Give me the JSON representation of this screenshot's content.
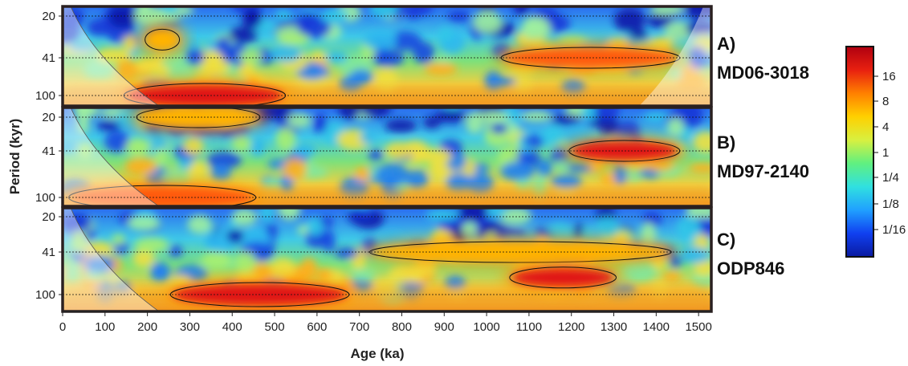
{
  "chart_data": {
    "type": "heatmap",
    "subtype": "wavelet-power-spectrum",
    "xlabel": "Age (ka)",
    "ylabel": "Period (kyr)",
    "xlim": [
      0,
      1530
    ],
    "x_ticks": [
      0,
      100,
      200,
      300,
      400,
      500,
      600,
      700,
      800,
      900,
      1000,
      1100,
      1200,
      1300,
      1400,
      1500
    ],
    "y_scale": "log",
    "y_ticks": [
      20,
      41,
      100
    ],
    "colorbar": {
      "scale": "log2",
      "tick_labels": [
        "16",
        "8",
        "4",
        "1",
        "1/4",
        "1/8",
        "1/16"
      ],
      "colors": [
        "#0a1aa0",
        "#1040f0",
        "#20a0ff",
        "#30e0e0",
        "#60f080",
        "#d8f040",
        "#ffd000",
        "#ff8000",
        "#e82010",
        "#b00010"
      ]
    },
    "panels": [
      {
        "letter": "A)",
        "core": "MD06-3018",
        "strong_power": [
          {
            "period": 100,
            "from_ka": 150,
            "to_ka": 520,
            "power": "16+"
          },
          {
            "period": 41,
            "from_ka": 1040,
            "to_ka": 1450,
            "power": "8-16"
          },
          {
            "period": 30,
            "from_ka": 200,
            "to_ka": 270,
            "power": "4-8"
          }
        ]
      },
      {
        "letter": "B)",
        "core": "MD97-2140",
        "strong_power": [
          {
            "period": 100,
            "from_ka": 20,
            "to_ka": 450,
            "power": "8-16"
          },
          {
            "period": 41,
            "from_ka": 1200,
            "to_ka": 1450,
            "power": "16+"
          },
          {
            "period": 20,
            "from_ka": 180,
            "to_ka": 460,
            "power": "4-8"
          }
        ]
      },
      {
        "letter": "C)",
        "core": "ODP846",
        "strong_power": [
          {
            "period": 100,
            "from_ka": 260,
            "to_ka": 670,
            "power": "16+"
          },
          {
            "period": 41,
            "from_ka": 730,
            "to_ka": 1430,
            "power": "4-8"
          },
          {
            "period": 70,
            "from_ka": 1060,
            "to_ka": 1300,
            "power": "16+"
          }
        ]
      }
    ]
  }
}
